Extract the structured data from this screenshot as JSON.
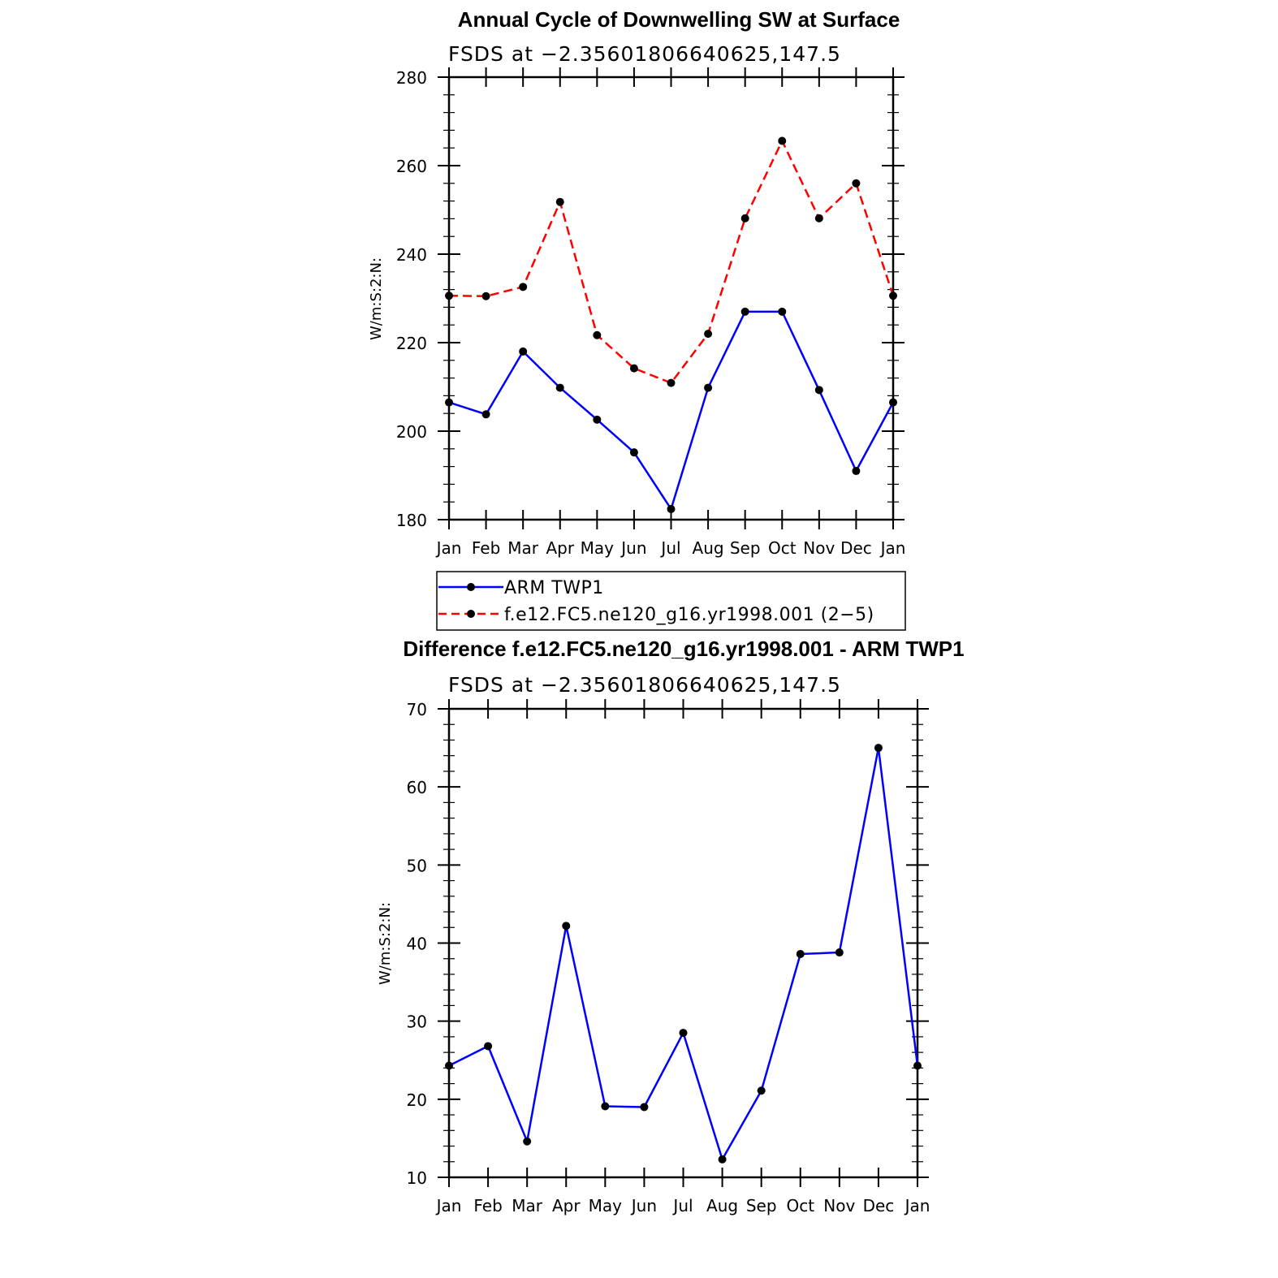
{
  "colors": {
    "obs": "#0000ff",
    "model": "#ff0000",
    "marker": "#000000",
    "axis": "#000000"
  },
  "chart_data": [
    {
      "type": "line",
      "title": "Annual Cycle of Downwelling SW at Surface",
      "subtitle": "FSDS at −2.35601806640625,147.5",
      "xlabel": "",
      "ylabel": "W/m:S:2:N:",
      "categories": [
        "Jan",
        "Feb",
        "Mar",
        "Apr",
        "May",
        "Jun",
        "Jul",
        "Aug",
        "Sep",
        "Oct",
        "Nov",
        "Dec",
        "Jan"
      ],
      "ylim": [
        180,
        280
      ],
      "yticks": [
        180,
        200,
        220,
        240,
        260,
        280
      ],
      "series": [
        {
          "name": "ARM TWP1",
          "style": "solid",
          "color": "#0000ff",
          "values": [
            206.5,
            203.8,
            218.0,
            209.8,
            202.6,
            195.2,
            182.4,
            209.8,
            227.0,
            227.0,
            209.3,
            191.0,
            206.5
          ]
        },
        {
          "name": "f.e12.FC5.ne120_g16.yr1998.001 (2−5)",
          "style": "dashed",
          "color": "#ff0000",
          "values": [
            230.6,
            230.5,
            232.6,
            251.8,
            221.7,
            214.2,
            210.9,
            222.0,
            248.1,
            265.6,
            248.1,
            256.0,
            230.6
          ]
        }
      ],
      "legend": "below"
    },
    {
      "type": "line",
      "title": "Difference f.e12.FC5.ne120_g16.yr1998.001 - ARM TWP1",
      "subtitle": "FSDS at −2.35601806640625,147.5",
      "xlabel": "",
      "ylabel": "W/m:S:2:N:",
      "categories": [
        "Jan",
        "Feb",
        "Mar",
        "Apr",
        "May",
        "Jun",
        "Jul",
        "Aug",
        "Sep",
        "Oct",
        "Nov",
        "Dec",
        "Jan"
      ],
      "ylim": [
        10,
        70
      ],
      "yticks": [
        10,
        20,
        30,
        40,
        50,
        60,
        70
      ],
      "series": [
        {
          "style": "solid",
          "color": "#0000ff",
          "values": [
            24.3,
            26.8,
            14.6,
            42.2,
            19.1,
            19.0,
            28.5,
            12.3,
            21.1,
            38.6,
            38.8,
            65.0,
            24.3
          ]
        }
      ]
    }
  ]
}
